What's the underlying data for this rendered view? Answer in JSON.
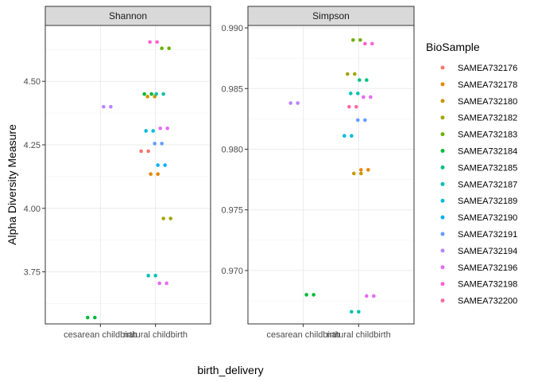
{
  "chart_data": {
    "type": "scatter",
    "xlabel": "birth_delivery",
    "ylabel": "Alpha Diversity Measure",
    "categories": [
      "cesarean childbirth",
      "natural childbirth"
    ],
    "legend": {
      "title": "BioSample",
      "position": "right",
      "entries": [
        {
          "name": "SAMEA732176",
          "color": "#F8766D"
        },
        {
          "name": "SAMEA732178",
          "color": "#E58700"
        },
        {
          "name": "SAMEA732180",
          "color": "#C99800"
        },
        {
          "name": "SAMEA732182",
          "color": "#A3A500"
        },
        {
          "name": "SAMEA732183",
          "color": "#6BB100"
        },
        {
          "name": "SAMEA732184",
          "color": "#00BA38"
        },
        {
          "name": "SAMEA732185",
          "color": "#00BF7D"
        },
        {
          "name": "SAMEA732187",
          "color": "#00C0AF"
        },
        {
          "name": "SAMEA732189",
          "color": "#00BCD8"
        },
        {
          "name": "SAMEA732190",
          "color": "#00B0F6"
        },
        {
          "name": "SAMEA732191",
          "color": "#619CFF"
        },
        {
          "name": "SAMEA732194",
          "color": "#B983FF"
        },
        {
          "name": "SAMEA732196",
          "color": "#E76BF3"
        },
        {
          "name": "SAMEA732198",
          "color": "#FD61D1"
        },
        {
          "name": "SAMEA732200",
          "color": "#FF67A4"
        }
      ]
    },
    "facets": [
      {
        "name": "Shannon",
        "ylim": [
          3.545,
          4.72
        ],
        "yticks": [
          "3.75",
          "4.00",
          "4.25",
          "4.50"
        ],
        "grid": true,
        "points": [
          {
            "sample": "SAMEA732184",
            "x": "cesarean childbirth",
            "y": 3.57
          },
          {
            "sample": "SAMEA732194",
            "x": "cesarean childbirth",
            "y": 4.4
          },
          {
            "sample": "SAMEA732198",
            "x": "natural childbirth",
            "y": 4.655
          },
          {
            "sample": "SAMEA732183",
            "x": "natural childbirth",
            "y": 4.63
          },
          {
            "sample": "SAMEA732184",
            "x": "natural childbirth",
            "y": 4.45
          },
          {
            "sample": "SAMEA732187",
            "x": "natural childbirth",
            "y": 4.45
          },
          {
            "sample": "SAMEA732180",
            "x": "natural childbirth",
            "y": 4.44
          },
          {
            "sample": "SAMEA732196",
            "x": "natural childbirth",
            "y": 4.315
          },
          {
            "sample": "SAMEA732189",
            "x": "natural childbirth",
            "y": 4.305
          },
          {
            "sample": "SAMEA732191",
            "x": "natural childbirth",
            "y": 4.255
          },
          {
            "sample": "SAMEA732176",
            "x": "natural childbirth",
            "y": 4.225
          },
          {
            "sample": "SAMEA732190",
            "x": "natural childbirth",
            "y": 4.17
          },
          {
            "sample": "SAMEA732178",
            "x": "natural childbirth",
            "y": 4.135
          },
          {
            "sample": "SAMEA732182",
            "x": "natural childbirth",
            "y": 3.96
          },
          {
            "sample": "SAMEA732187",
            "x": "natural childbirth",
            "y": 3.735
          },
          {
            "sample": "SAMEA732196",
            "x": "natural childbirth",
            "y": 3.705
          }
        ]
      },
      {
        "name": "Simpson",
        "ylim": [
          0.9656,
          0.9902
        ],
        "yticks": [
          "0.970",
          "0.975",
          "0.980",
          "0.985",
          "0.990"
        ],
        "grid": true,
        "points": [
          {
            "sample": "SAMEA732194",
            "x": "cesarean childbirth",
            "y": 0.9838
          },
          {
            "sample": "SAMEA732184",
            "x": "cesarean childbirth",
            "y": 0.968
          },
          {
            "sample": "SAMEA732183",
            "x": "natural childbirth",
            "y": 0.989
          },
          {
            "sample": "SAMEA732198",
            "x": "natural childbirth",
            "y": 0.9887
          },
          {
            "sample": "SAMEA732182",
            "x": "natural childbirth",
            "y": 0.9862
          },
          {
            "sample": "SAMEA732185",
            "x": "natural childbirth",
            "y": 0.9857
          },
          {
            "sample": "SAMEA732187",
            "x": "natural childbirth",
            "y": 0.9846
          },
          {
            "sample": "SAMEA732196",
            "x": "natural childbirth",
            "y": 0.9843
          },
          {
            "sample": "SAMEA732200",
            "x": "natural childbirth",
            "y": 0.9835
          },
          {
            "sample": "SAMEA732191",
            "x": "natural childbirth",
            "y": 0.9824
          },
          {
            "sample": "SAMEA732189",
            "x": "natural childbirth",
            "y": 0.9811
          },
          {
            "sample": "SAMEA732178",
            "x": "natural childbirth",
            "y": 0.9783
          },
          {
            "sample": "SAMEA732180",
            "x": "natural childbirth",
            "y": 0.978
          },
          {
            "sample": "SAMEA732196",
            "x": "natural childbirth",
            "y": 0.9679
          },
          {
            "sample": "SAMEA732187",
            "x": "natural childbirth",
            "y": 0.9666
          }
        ]
      }
    ]
  }
}
